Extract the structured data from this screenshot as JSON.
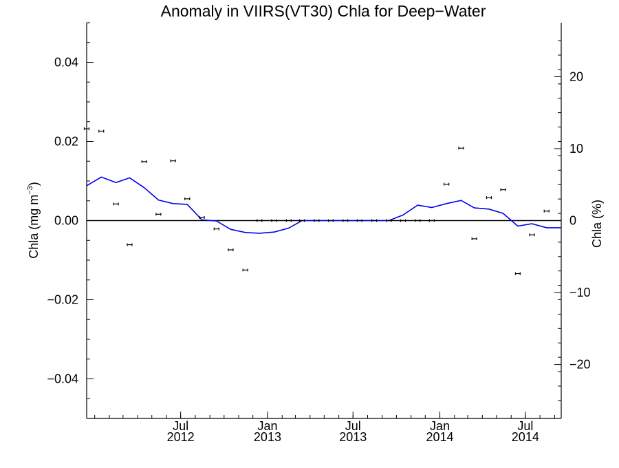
{
  "chart_data": {
    "type": "line",
    "title": "Anomaly in VIIRS(VT30) Chla for Deep−Water",
    "ylabel_left": "Chla (mg m",
    "ylabel_left_sup": "−3",
    "ylabel_left_close": ")",
    "ylabel_right": "Chla (%)",
    "xlim": [
      "2011-12-15",
      "2014-09-15"
    ],
    "ylim_left": [
      -0.05,
      0.05
    ],
    "ylim_right": [
      -27.5,
      27.5
    ],
    "left_ticks": [
      {
        "value": 0.04,
        "label": "0.04"
      },
      {
        "value": 0.02,
        "label": "0.02"
      },
      {
        "value": 0.0,
        "label": "0.00"
      },
      {
        "value": -0.02,
        "label": "−0.02"
      },
      {
        "value": -0.04,
        "label": "−0.04"
      }
    ],
    "right_ticks": [
      {
        "value": 20,
        "label": "20"
      },
      {
        "value": 10,
        "label": "10"
      },
      {
        "value": 0,
        "label": "0"
      },
      {
        "value": -10,
        "label": "−10"
      },
      {
        "value": -20,
        "label": "−20"
      }
    ],
    "x_ticks": [
      {
        "date": "2012-07-01",
        "month": "Jul",
        "year": "2012"
      },
      {
        "date": "2013-01-01",
        "month": "Jan",
        "year": "2013"
      },
      {
        "date": "2013-07-01",
        "month": "Jul",
        "year": "2013"
      },
      {
        "date": "2014-01-01",
        "month": "Jan",
        "year": "2014"
      },
      {
        "date": "2014-07-01",
        "month": "Jul",
        "year": "2014"
      }
    ],
    "series": [
      {
        "kind": "points_with_error",
        "color": "#000000",
        "points": [
          {
            "x": "2011-12-15",
            "y": 0.0232
          },
          {
            "x": "2012-01-15",
            "y": 0.0226
          },
          {
            "x": "2012-02-15",
            "y": 0.0042
          },
          {
            "x": "2012-03-15",
            "y": -0.0061
          },
          {
            "x": "2012-04-15",
            "y": 0.0149
          },
          {
            "x": "2012-05-15",
            "y": 0.0016
          },
          {
            "x": "2012-06-15",
            "y": 0.0151
          },
          {
            "x": "2012-07-15",
            "y": 0.0055
          },
          {
            "x": "2012-08-15",
            "y": 0.0008
          },
          {
            "x": "2012-09-15",
            "y": -0.0021
          },
          {
            "x": "2012-10-15",
            "y": -0.0074
          },
          {
            "x": "2012-11-15",
            "y": -0.0125
          },
          {
            "x": "2012-12-15",
            "y": 0.0
          },
          {
            "x": "2013-01-15",
            "y": 0.0
          },
          {
            "x": "2013-02-15",
            "y": 0.0
          },
          {
            "x": "2013-03-15",
            "y": 0.0
          },
          {
            "x": "2013-04-15",
            "y": 0.0
          },
          {
            "x": "2013-05-15",
            "y": 0.0
          },
          {
            "x": "2013-06-15",
            "y": 0.0
          },
          {
            "x": "2013-07-15",
            "y": 0.0
          },
          {
            "x": "2013-08-15",
            "y": 0.0
          },
          {
            "x": "2013-09-15",
            "y": 0.0
          },
          {
            "x": "2013-10-15",
            "y": 0.0
          },
          {
            "x": "2013-11-15",
            "y": 0.0
          },
          {
            "x": "2013-12-15",
            "y": 0.0
          },
          {
            "x": "2014-01-15",
            "y": 0.0092
          },
          {
            "x": "2014-02-15",
            "y": 0.0183
          },
          {
            "x": "2014-03-15",
            "y": -0.0046
          },
          {
            "x": "2014-04-15",
            "y": 0.0058
          },
          {
            "x": "2014-05-15",
            "y": 0.0078
          },
          {
            "x": "2014-06-15",
            "y": -0.0134
          },
          {
            "x": "2014-07-15",
            "y": -0.0036
          },
          {
            "x": "2014-08-15",
            "y": 0.0024
          }
        ]
      },
      {
        "kind": "line",
        "color": "#0000ee",
        "points": [
          {
            "x": "2011-12-15",
            "y": 0.0088
          },
          {
            "x": "2012-01-15",
            "y": 0.011
          },
          {
            "x": "2012-02-15",
            "y": 0.0096
          },
          {
            "x": "2012-03-15",
            "y": 0.0108
          },
          {
            "x": "2012-04-15",
            "y": 0.0083
          },
          {
            "x": "2012-05-15",
            "y": 0.0052
          },
          {
            "x": "2012-06-15",
            "y": 0.0043
          },
          {
            "x": "2012-07-15",
            "y": 0.0041
          },
          {
            "x": "2012-08-15",
            "y": 0.0002
          },
          {
            "x": "2012-09-15",
            "y": -0.0001
          },
          {
            "x": "2012-10-15",
            "y": -0.0022
          },
          {
            "x": "2012-11-15",
            "y": -0.003
          },
          {
            "x": "2012-12-15",
            "y": -0.0032
          },
          {
            "x": "2013-01-15",
            "y": -0.0029
          },
          {
            "x": "2013-02-15",
            "y": -0.0019
          },
          {
            "x": "2013-03-15",
            "y": 0.0
          },
          {
            "x": "2013-04-15",
            "y": 0.0
          },
          {
            "x": "2013-05-15",
            "y": 0.0
          },
          {
            "x": "2013-06-15",
            "y": 0.0
          },
          {
            "x": "2013-07-15",
            "y": 0.0
          },
          {
            "x": "2013-08-15",
            "y": 0.0
          },
          {
            "x": "2013-09-15",
            "y": 0.0
          },
          {
            "x": "2013-10-15",
            "y": 0.0014
          },
          {
            "x": "2013-11-15",
            "y": 0.0039
          },
          {
            "x": "2013-12-15",
            "y": 0.0033
          },
          {
            "x": "2014-01-15",
            "y": 0.0043
          },
          {
            "x": "2014-02-15",
            "y": 0.0051
          },
          {
            "x": "2014-03-15",
            "y": 0.0032
          },
          {
            "x": "2014-04-15",
            "y": 0.0029
          },
          {
            "x": "2014-05-15",
            "y": 0.0018
          },
          {
            "x": "2014-06-15",
            "y": -0.0014
          },
          {
            "x": "2014-07-15",
            "y": -0.0008
          },
          {
            "x": "2014-08-15",
            "y": -0.0018
          },
          {
            "x": "2014-09-15",
            "y": -0.0018
          }
        ]
      }
    ],
    "grid": false,
    "zero_line": true
  }
}
